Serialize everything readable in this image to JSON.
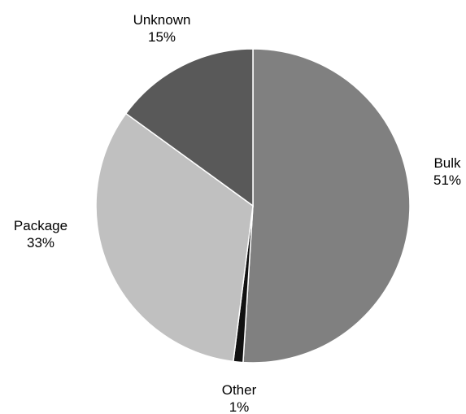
{
  "chart_data": {
    "type": "pie",
    "title": "",
    "slices": [
      {
        "label": "Bulk",
        "value": 51,
        "value_label": "51%",
        "color": "#808080"
      },
      {
        "label": "Other",
        "value": 1,
        "value_label": "1%",
        "color": "#111111"
      },
      {
        "label": "Package",
        "value": 33,
        "value_label": "33%",
        "color": "#c0c0c0"
      },
      {
        "label": "Unknown",
        "value": 15,
        "value_label": "15%",
        "color": "#595959"
      }
    ],
    "start_position": "top",
    "direction": "clockwise",
    "legend": "none"
  }
}
